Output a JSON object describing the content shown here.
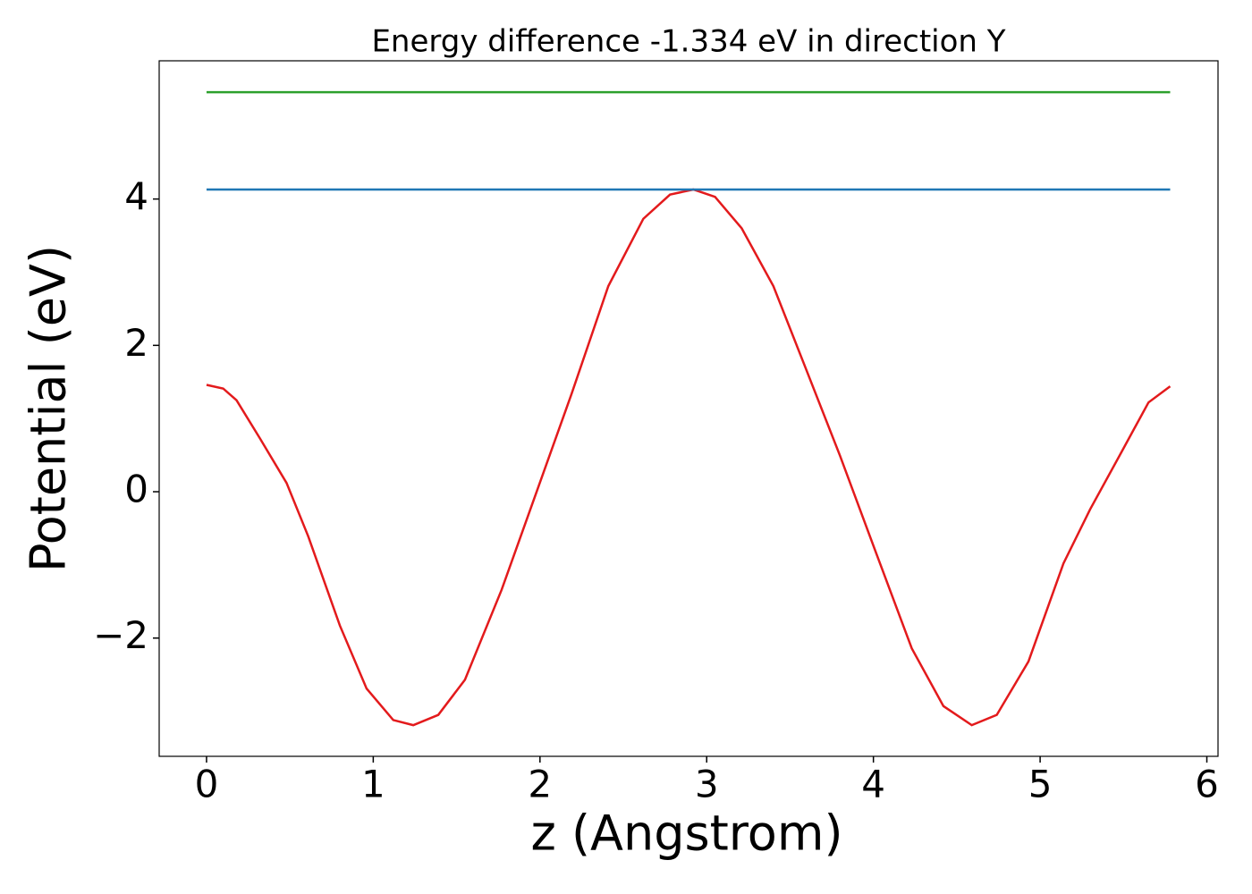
{
  "chart_data": {
    "type": "line",
    "title": "Energy difference -1.334 eV in direction Y",
    "xlabel": "z (Angstrom)",
    "ylabel": "Potential (eV)",
    "xlim": [
      -0.284,
      6.067
    ],
    "ylim": [
      -3.616,
      5.889
    ],
    "xticks": [
      0,
      1,
      2,
      3,
      4,
      5,
      6
    ],
    "yticks": [
      {
        "value": -2,
        "label": "−2"
      },
      0,
      2,
      4
    ],
    "grid": false,
    "series": [
      {
        "color": "#e31a1c",
        "x": [
          0,
          0.1,
          0.18,
          0.32,
          0.48,
          0.61,
          0.8,
          0.96,
          1.12,
          1.24,
          1.39,
          1.55,
          1.77,
          1.98,
          2.19,
          2.41,
          2.62,
          2.78,
          2.92,
          3.05,
          3.21,
          3.4,
          3.59,
          3.8,
          4.02,
          4.23,
          4.42,
          4.59,
          4.74,
          4.93,
          5.14,
          5.3,
          5.49,
          5.65,
          5.78
        ],
        "values": [
          1.46,
          1.41,
          1.25,
          0.73,
          0.12,
          -0.61,
          -1.83,
          -2.69,
          -3.12,
          -3.19,
          -3.05,
          -2.57,
          -1.34,
          0,
          1.34,
          2.81,
          3.73,
          4.06,
          4.13,
          4.03,
          3.6,
          2.81,
          1.71,
          0.49,
          -0.86,
          -2.14,
          -2.93,
          -3.19,
          -3.05,
          -2.32,
          -0.98,
          -0.24,
          0.55,
          1.22,
          1.44
        ]
      },
      {
        "color": "#1f77b4",
        "x": [
          0,
          5.78
        ],
        "values": [
          4.13,
          4.13
        ]
      },
      {
        "color": "#2ca02c",
        "x": [
          0,
          5.78
        ],
        "values": [
          5.46,
          5.46
        ]
      }
    ]
  }
}
